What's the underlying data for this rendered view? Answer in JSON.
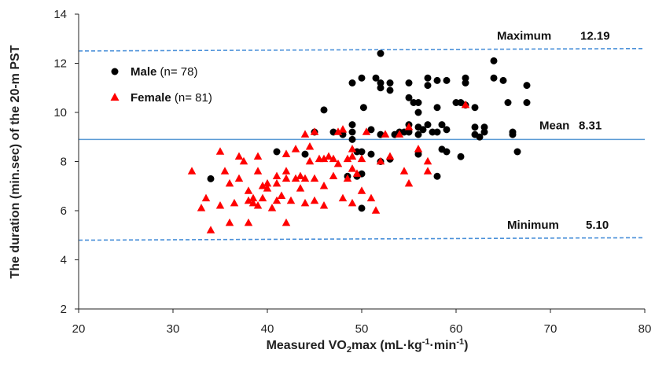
{
  "chart_data": {
    "type": "scatter",
    "xlabel": {
      "pre": "Measured VO",
      "sub": "2",
      "post": "max (mL·kg",
      "sup1": "-1",
      "mid": "·min",
      "sup2": "-1",
      "end": ")"
    },
    "ylabel": "The duration (min.sec) of the 20-m PST",
    "xlim": [
      20,
      80
    ],
    "ylim": [
      2,
      14
    ],
    "xticks": [
      "20",
      "30",
      "40",
      "50",
      "60",
      "70",
      "80"
    ],
    "yticks": [
      "2",
      "4",
      "6",
      "8",
      "10",
      "12",
      "14"
    ],
    "grid": false,
    "legend_position": "top-left",
    "reference_lines": [
      {
        "label": "Maximum",
        "value_label": "12.19",
        "y_start": 12.5,
        "y_end": 12.6,
        "style": "dashed",
        "color": "#4a90d9"
      },
      {
        "label": "Mean",
        "value_label": "8.31",
        "y_start": 8.9,
        "y_end": 8.9,
        "style": "solid",
        "color": "#5b9bd5"
      },
      {
        "label": "Minimum",
        "value_label": "5.10",
        "y_start": 4.8,
        "y_end": 4.9,
        "style": "dashed",
        "color": "#4a90d9"
      }
    ],
    "series": [
      {
        "name": "Male",
        "count_label": "(n= 78)",
        "marker": "circle",
        "color": "#000000",
        "points": [
          [
            34,
            7.3
          ],
          [
            41,
            8.4
          ],
          [
            44,
            8.3
          ],
          [
            45,
            9.2
          ],
          [
            46,
            10.1
          ],
          [
            48,
            9.1
          ],
          [
            48.5,
            7.4
          ],
          [
            49,
            11.2
          ],
          [
            49,
            9.5
          ],
          [
            49,
            9.2
          ],
          [
            49,
            8.9
          ],
          [
            49.5,
            8.4
          ],
          [
            49.5,
            7.4
          ],
          [
            50,
            8.4
          ],
          [
            50,
            7.5
          ],
          [
            50,
            6.1
          ],
          [
            50,
            11.4
          ],
          [
            50.2,
            10.2
          ],
          [
            51,
            9.3
          ],
          [
            51.5,
            11.4
          ],
          [
            52,
            12.4
          ],
          [
            52,
            11.2
          ],
          [
            52,
            11.0
          ],
          [
            52,
            8.0
          ],
          [
            53,
            11.2
          ],
          [
            53,
            8.1
          ],
          [
            53.5,
            9.1
          ],
          [
            54,
            9.2
          ],
          [
            55,
            11.2
          ],
          [
            55,
            10.6
          ],
          [
            55,
            9.2
          ],
          [
            55.5,
            10.4
          ],
          [
            56,
            10.4
          ],
          [
            56,
            10.0
          ],
          [
            56,
            9.4
          ],
          [
            56,
            9.1
          ],
          [
            56,
            8.3
          ],
          [
            56.5,
            9.3
          ],
          [
            57,
            11.4
          ],
          [
            57,
            11.1
          ],
          [
            57,
            9.5
          ],
          [
            58,
            11.3
          ],
          [
            58,
            9.2
          ],
          [
            58,
            7.4
          ],
          [
            58.5,
            9.5
          ],
          [
            58.5,
            8.5
          ],
          [
            59,
            8.4
          ],
          [
            59,
            11.3
          ],
          [
            60,
            10.4
          ],
          [
            60.5,
            8.2
          ],
          [
            61,
            11.4
          ],
          [
            61,
            11.2
          ],
          [
            61,
            10.3
          ],
          [
            62,
            9.4
          ],
          [
            62,
            9.1
          ],
          [
            62.5,
            9.0
          ],
          [
            63,
            9.4
          ],
          [
            64,
            12.1
          ],
          [
            64,
            11.4
          ],
          [
            65,
            11.3
          ],
          [
            65.5,
            10.4
          ],
          [
            66,
            9.1
          ],
          [
            66.5,
            8.4
          ],
          [
            67.5,
            11.1
          ],
          [
            67.5,
            10.4
          ],
          [
            66,
            9.2
          ],
          [
            60.5,
            10.4
          ],
          [
            57.5,
            9.2
          ],
          [
            59,
            9.3
          ],
          [
            54.5,
            9.2
          ],
          [
            51,
            8.3
          ],
          [
            47,
            9.2
          ],
          [
            53,
            10.9
          ],
          [
            55,
            9.5
          ],
          [
            62,
            10.2
          ],
          [
            58,
            10.2
          ],
          [
            63,
            9.2
          ],
          [
            52,
            9.1
          ]
        ]
      },
      {
        "name": "Female",
        "count_label": "(n= 81)",
        "marker": "triangle",
        "color": "#ff0000",
        "points": [
          [
            32,
            7.6
          ],
          [
            33,
            6.1
          ],
          [
            33.5,
            6.5
          ],
          [
            34,
            5.2
          ],
          [
            35,
            6.2
          ],
          [
            35,
            8.4
          ],
          [
            35.5,
            7.6
          ],
          [
            36,
            7.1
          ],
          [
            36,
            5.5
          ],
          [
            37,
            8.2
          ],
          [
            37,
            7.3
          ],
          [
            37.5,
            8.0
          ],
          [
            38,
            6.4
          ],
          [
            38,
            5.5
          ],
          [
            38.5,
            6.3
          ],
          [
            38.5,
            6.5
          ],
          [
            39,
            6.2
          ],
          [
            39,
            7.6
          ],
          [
            39,
            8.2
          ],
          [
            39.5,
            6.5
          ],
          [
            40,
            6.9
          ],
          [
            40,
            7.1
          ],
          [
            41,
            6.4
          ],
          [
            41,
            7.4
          ],
          [
            41,
            7.1
          ],
          [
            42,
            5.5
          ],
          [
            42,
            7.3
          ],
          [
            42,
            7.6
          ],
          [
            42,
            8.3
          ],
          [
            42.5,
            6.4
          ],
          [
            43,
            8.5
          ],
          [
            43,
            7.3
          ],
          [
            43.5,
            7.4
          ],
          [
            44,
            7.3
          ],
          [
            44,
            6.3
          ],
          [
            44,
            9.1
          ],
          [
            44.5,
            8.0
          ],
          [
            45,
            6.4
          ],
          [
            45,
            7.3
          ],
          [
            45,
            9.2
          ],
          [
            45.5,
            8.1
          ],
          [
            46,
            8.1
          ],
          [
            46,
            7.0
          ],
          [
            46.5,
            8.2
          ],
          [
            47,
            7.4
          ],
          [
            47,
            8.1
          ],
          [
            47.5,
            9.2
          ],
          [
            48,
            9.3
          ],
          [
            48,
            6.5
          ],
          [
            48.5,
            8.1
          ],
          [
            48.5,
            7.3
          ],
          [
            49,
            8.2
          ],
          [
            49,
            8.5
          ],
          [
            49,
            6.3
          ],
          [
            49.5,
            7.5
          ],
          [
            50,
            8.1
          ],
          [
            50.5,
            9.2
          ],
          [
            51,
            6.5
          ],
          [
            51.5,
            6.0
          ],
          [
            52,
            8.0
          ],
          [
            52.5,
            9.1
          ],
          [
            53,
            8.2
          ],
          [
            54,
            9.1
          ],
          [
            54.5,
            7.6
          ],
          [
            55,
            9.4
          ],
          [
            55,
            7.1
          ],
          [
            56,
            8.5
          ],
          [
            57,
            8.0
          ],
          [
            57,
            7.6
          ],
          [
            61,
            10.3
          ],
          [
            46,
            6.2
          ],
          [
            40.5,
            6.1
          ],
          [
            36.5,
            6.3
          ],
          [
            43.5,
            6.9
          ],
          [
            47.5,
            7.9
          ],
          [
            50,
            6.8
          ],
          [
            44.5,
            8.6
          ],
          [
            39.5,
            7.0
          ],
          [
            41.5,
            6.6
          ],
          [
            38,
            6.8
          ],
          [
            49,
            7.7
          ]
        ]
      }
    ]
  }
}
